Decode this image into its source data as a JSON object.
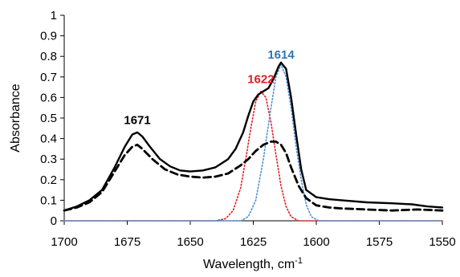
{
  "chart_data": {
    "type": "line",
    "xlabel": "Wavelength, cm",
    "xlabel_superscript": "-1",
    "ylabel": "Absorbance",
    "xlim": [
      1700,
      1550
    ],
    "ylim": [
      0,
      1
    ],
    "x_reversed": true,
    "grid": false,
    "legend": "none",
    "xticks": [
      1700,
      1675,
      1650,
      1625,
      1600,
      1575,
      1550
    ],
    "yticks": [
      0,
      0.1,
      0.2,
      0.3,
      0.4,
      0.5,
      0.6,
      0.7,
      0.8,
      0.9,
      1
    ],
    "series": [
      {
        "style": "solid",
        "color": "#000000",
        "points": [
          [
            1700,
            0.05
          ],
          [
            1695,
            0.07
          ],
          [
            1690,
            0.1
          ],
          [
            1685,
            0.15
          ],
          [
            1680,
            0.26
          ],
          [
            1676,
            0.36
          ],
          [
            1673,
            0.42
          ],
          [
            1671,
            0.43
          ],
          [
            1669,
            0.41
          ],
          [
            1666,
            0.36
          ],
          [
            1662,
            0.3
          ],
          [
            1658,
            0.265
          ],
          [
            1654,
            0.245
          ],
          [
            1650,
            0.24
          ],
          [
            1645,
            0.245
          ],
          [
            1640,
            0.26
          ],
          [
            1635,
            0.3
          ],
          [
            1632,
            0.35
          ],
          [
            1629,
            0.43
          ],
          [
            1627,
            0.51
          ],
          [
            1625,
            0.58
          ],
          [
            1623,
            0.615
          ],
          [
            1621,
            0.63
          ],
          [
            1619,
            0.645
          ],
          [
            1617,
            0.69
          ],
          [
            1615,
            0.75
          ],
          [
            1614,
            0.77
          ],
          [
            1612,
            0.74
          ],
          [
            1610,
            0.6
          ],
          [
            1608,
            0.42
          ],
          [
            1606,
            0.25
          ],
          [
            1604,
            0.15
          ],
          [
            1600,
            0.115
          ],
          [
            1595,
            0.105
          ],
          [
            1590,
            0.1
          ],
          [
            1580,
            0.09
          ],
          [
            1570,
            0.085
          ],
          [
            1562,
            0.08
          ],
          [
            1556,
            0.07
          ],
          [
            1550,
            0.065
          ]
        ]
      },
      {
        "style": "dashed",
        "color": "#000000",
        "points": [
          [
            1700,
            0.05
          ],
          [
            1695,
            0.065
          ],
          [
            1690,
            0.09
          ],
          [
            1685,
            0.14
          ],
          [
            1680,
            0.24
          ],
          [
            1676,
            0.32
          ],
          [
            1673,
            0.36
          ],
          [
            1671,
            0.37
          ],
          [
            1669,
            0.35
          ],
          [
            1665,
            0.3
          ],
          [
            1660,
            0.25
          ],
          [
            1655,
            0.225
          ],
          [
            1650,
            0.215
          ],
          [
            1645,
            0.21
          ],
          [
            1640,
            0.215
          ],
          [
            1635,
            0.23
          ],
          [
            1630,
            0.27
          ],
          [
            1627,
            0.3
          ],
          [
            1624,
            0.34
          ],
          [
            1621,
            0.37
          ],
          [
            1618,
            0.385
          ],
          [
            1616,
            0.385
          ],
          [
            1614,
            0.37
          ],
          [
            1612,
            0.33
          ],
          [
            1610,
            0.26
          ],
          [
            1607,
            0.17
          ],
          [
            1604,
            0.11
          ],
          [
            1600,
            0.075
          ],
          [
            1595,
            0.065
          ],
          [
            1590,
            0.06
          ],
          [
            1580,
            0.055
          ],
          [
            1570,
            0.05
          ],
          [
            1560,
            0.055
          ],
          [
            1550,
            0.05
          ]
        ]
      },
      {
        "style": "dotted",
        "color": "#e02020",
        "points": [
          [
            1700,
            0.0
          ],
          [
            1640,
            0.0
          ],
          [
            1636,
            0.01
          ],
          [
            1633,
            0.05
          ],
          [
            1630,
            0.16
          ],
          [
            1628,
            0.3
          ],
          [
            1626,
            0.45
          ],
          [
            1624,
            0.58
          ],
          [
            1622,
            0.63
          ],
          [
            1620,
            0.6
          ],
          [
            1618,
            0.48
          ],
          [
            1616,
            0.32
          ],
          [
            1614,
            0.17
          ],
          [
            1612,
            0.07
          ],
          [
            1610,
            0.02
          ],
          [
            1607,
            0.0
          ],
          [
            1550,
            0.0
          ]
        ]
      },
      {
        "style": "dotted",
        "color": "#4a90d9",
        "points": [
          [
            1700,
            0.0
          ],
          [
            1630,
            0.0
          ],
          [
            1627,
            0.02
          ],
          [
            1624,
            0.1
          ],
          [
            1621,
            0.3
          ],
          [
            1618,
            0.55
          ],
          [
            1616,
            0.7
          ],
          [
            1614,
            0.76
          ],
          [
            1612,
            0.7
          ],
          [
            1610,
            0.55
          ],
          [
            1608,
            0.36
          ],
          [
            1606,
            0.2
          ],
          [
            1604,
            0.08
          ],
          [
            1602,
            0.02
          ],
          [
            1599,
            0.0
          ],
          [
            1550,
            0.0
          ]
        ]
      }
    ],
    "annotations": [
      {
        "text": "1671",
        "x": 1671,
        "y": 0.47,
        "color": "#000000"
      },
      {
        "text": "1622",
        "x": 1622,
        "y": 0.67,
        "color": "#e02020"
      },
      {
        "text": "1614",
        "x": 1614,
        "y": 0.79,
        "color": "#2e75b6"
      }
    ]
  }
}
